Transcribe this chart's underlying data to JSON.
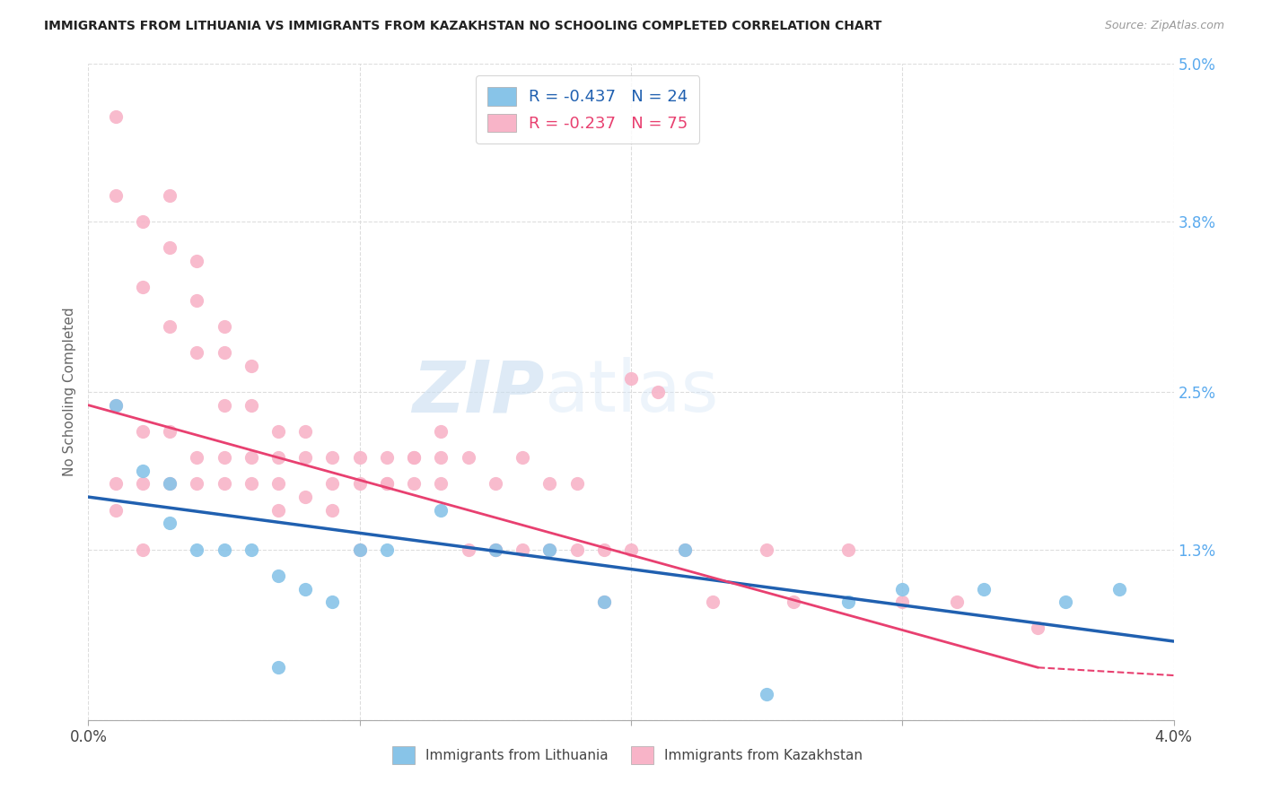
{
  "title": "IMMIGRANTS FROM LITHUANIA VS IMMIGRANTS FROM KAZAKHSTAN NO SCHOOLING COMPLETED CORRELATION CHART",
  "source": "Source: ZipAtlas.com",
  "ylabel": "No Schooling Completed",
  "xlim": [
    0.0,
    0.04
  ],
  "ylim": [
    0.0,
    0.05
  ],
  "xticks": [
    0.0,
    0.01,
    0.02,
    0.03,
    0.04
  ],
  "xtick_labels": [
    "0.0%",
    "",
    "",
    "",
    "4.0%"
  ],
  "yticks": [
    0.0,
    0.013,
    0.025,
    0.038,
    0.05
  ],
  "ytick_labels": [
    "",
    "1.3%",
    "2.5%",
    "3.8%",
    "5.0%"
  ],
  "legend_R_blue": "-0.437",
  "legend_N_blue": "24",
  "legend_R_pink": "-0.237",
  "legend_N_pink": "75",
  "legend_label_blue": "Immigrants from Lithuania",
  "legend_label_pink": "Immigrants from Kazakhstan",
  "blue_color": "#88c4e8",
  "pink_color": "#f8b4c8",
  "blue_line_color": "#2060b0",
  "pink_line_color": "#e84070",
  "watermark_zip": "ZIP",
  "watermark_atlas": "atlas",
  "blue_x": [
    0.001,
    0.002,
    0.003,
    0.004,
    0.005,
    0.006,
    0.007,
    0.008,
    0.009,
    0.01,
    0.011,
    0.013,
    0.015,
    0.017,
    0.019,
    0.022,
    0.025,
    0.028,
    0.03,
    0.033,
    0.036,
    0.038,
    0.003,
    0.007
  ],
  "blue_y": [
    0.024,
    0.019,
    0.015,
    0.013,
    0.013,
    0.013,
    0.011,
    0.01,
    0.009,
    0.013,
    0.013,
    0.016,
    0.013,
    0.013,
    0.009,
    0.013,
    0.002,
    0.009,
    0.01,
    0.01,
    0.009,
    0.01,
    0.018,
    0.004
  ],
  "pink_x": [
    0.001,
    0.001,
    0.001,
    0.002,
    0.002,
    0.002,
    0.003,
    0.003,
    0.003,
    0.004,
    0.004,
    0.004,
    0.005,
    0.005,
    0.005,
    0.006,
    0.006,
    0.007,
    0.007,
    0.007,
    0.008,
    0.008,
    0.009,
    0.009,
    0.01,
    0.01,
    0.011,
    0.011,
    0.012,
    0.012,
    0.013,
    0.013,
    0.014,
    0.015,
    0.015,
    0.016,
    0.017,
    0.018,
    0.019,
    0.02,
    0.021,
    0.022,
    0.023,
    0.025,
    0.026,
    0.028,
    0.03,
    0.032,
    0.035,
    0.001,
    0.001,
    0.002,
    0.002,
    0.003,
    0.003,
    0.004,
    0.005,
    0.006,
    0.007,
    0.008,
    0.009,
    0.01,
    0.011,
    0.012,
    0.013,
    0.014,
    0.015,
    0.016,
    0.017,
    0.018,
    0.019,
    0.02,
    0.004,
    0.005,
    0.006
  ],
  "pink_y": [
    0.046,
    0.04,
    0.024,
    0.038,
    0.033,
    0.022,
    0.04,
    0.03,
    0.022,
    0.035,
    0.032,
    0.02,
    0.028,
    0.02,
    0.018,
    0.027,
    0.02,
    0.022,
    0.02,
    0.016,
    0.022,
    0.017,
    0.02,
    0.016,
    0.02,
    0.013,
    0.02,
    0.018,
    0.02,
    0.018,
    0.02,
    0.018,
    0.02,
    0.018,
    0.013,
    0.02,
    0.018,
    0.018,
    0.013,
    0.026,
    0.025,
    0.013,
    0.009,
    0.013,
    0.009,
    0.013,
    0.009,
    0.009,
    0.007,
    0.018,
    0.016,
    0.018,
    0.013,
    0.036,
    0.018,
    0.018,
    0.03,
    0.018,
    0.018,
    0.02,
    0.018,
    0.018,
    0.018,
    0.02,
    0.022,
    0.013,
    0.013,
    0.013,
    0.013,
    0.013,
    0.009,
    0.013,
    0.028,
    0.024,
    0.024
  ],
  "blue_line_x0": 0.0,
  "blue_line_x1": 0.04,
  "blue_line_y0": 0.017,
  "blue_line_y1": 0.006,
  "pink_line_x0": 0.0,
  "pink_line_x1": 0.035,
  "pink_line_y0": 0.024,
  "pink_line_y1": 0.004
}
